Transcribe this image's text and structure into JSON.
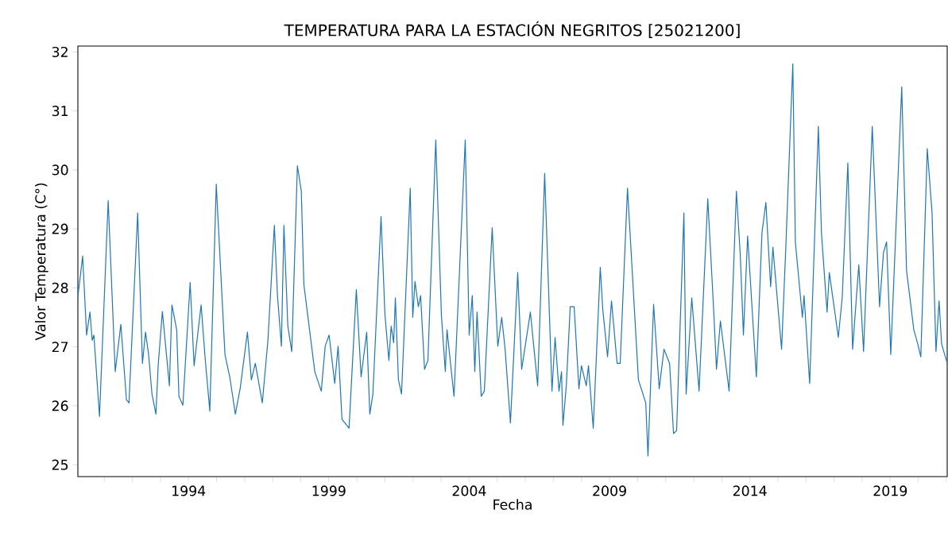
{
  "chart_data": {
    "type": "line",
    "title": "TEMPERATURA PARA LA ESTACIÓN NEGRITOS [25021200]",
    "xlabel": "Fecha",
    "ylabel": "Valor Temperatura (C°)",
    "x": [
      1990.06,
      1990.23,
      1990.37,
      1990.49,
      1990.57,
      1990.63,
      1990.83,
      1991.14,
      1991.39,
      1991.59,
      1991.79,
      1991.88,
      1992.19,
      1992.36,
      1992.47,
      1992.58,
      1992.7,
      1992.84,
      1992.92,
      1993.07,
      1993.32,
      1993.41,
      1993.58,
      1993.66,
      1993.8,
      1994.06,
      1994.2,
      1994.45,
      1994.59,
      1994.76,
      1994.99,
      1995.3,
      1995.47,
      1995.67,
      1995.84,
      1996.1,
      1996.24,
      1996.38,
      1996.63,
      1996.83,
      1997.06,
      1997.17,
      1997.31,
      1997.4,
      1997.54,
      1997.68,
      1997.88,
      1998.02,
      1998.11,
      1998.5,
      1998.73,
      1998.87,
      1999.01,
      1999.21,
      1999.33,
      1999.47,
      1999.72,
      1999.98,
      2000.15,
      2000.35,
      2000.46,
      2000.57,
      2000.86,
      2001.0,
      2001.14,
      2001.22,
      2001.31,
      2001.37,
      2001.48,
      2001.59,
      2001.9,
      2001.99,
      2002.07,
      2002.19,
      2002.27,
      2002.41,
      2002.53,
      2002.81,
      2003.01,
      2003.15,
      2003.21,
      2003.46,
      2003.86,
      2004.0,
      2004.11,
      2004.2,
      2004.28,
      2004.43,
      2004.54,
      2004.82,
      2005.02,
      2005.16,
      2005.28,
      2005.47,
      2005.73,
      2005.87,
      2006.18,
      2006.44,
      2006.69,
      2006.95,
      2007.06,
      2007.2,
      2007.29,
      2007.34,
      2007.46,
      2007.6,
      2007.74,
      2007.91,
      2008.0,
      2008.17,
      2008.25,
      2008.42,
      2008.67,
      2008.76,
      2008.93,
      2009.07,
      2009.27,
      2009.38,
      2009.64,
      2010.03,
      2010.29,
      2010.37,
      2010.57,
      2010.77,
      2010.94,
      2011.14,
      2011.28,
      2011.39,
      2011.65,
      2011.73,
      2011.93,
      2012.19,
      2012.5,
      2012.7,
      2012.81,
      2012.95,
      2013.26,
      2013.52,
      2013.66,
      2013.77,
      2013.92,
      2014.23,
      2014.43,
      2014.57,
      2014.74,
      2014.82,
      2015.13,
      2015.28,
      2015.53,
      2015.62,
      2015.87,
      2015.93,
      2016.13,
      2016.44,
      2016.55,
      2016.75,
      2016.83,
      2017.0,
      2017.15,
      2017.29,
      2017.49,
      2017.66,
      2017.88,
      2018.05,
      2018.36,
      2018.62,
      2018.76,
      2018.87,
      2019.02,
      2019.41,
      2019.58,
      2019.84,
      2019.98,
      2020.09,
      2020.32,
      2020.49,
      2020.63,
      2020.74,
      2020.83,
      2021.03
    ],
    "series": [
      {
        "color": "#1f77b4",
        "values": [
          27.85,
          28.54,
          27.2,
          27.59,
          27.11,
          27.2,
          25.82,
          29.48,
          26.58,
          27.38,
          26.1,
          26.05,
          29.27,
          26.72,
          27.25,
          26.87,
          26.2,
          25.86,
          26.68,
          27.6,
          26.34,
          27.71,
          27.29,
          26.16,
          26.01,
          28.09,
          26.68,
          27.71,
          26.83,
          25.91,
          29.76,
          26.87,
          26.49,
          25.86,
          26.29,
          27.25,
          26.44,
          26.72,
          26.05,
          27.11,
          29.06,
          27.87,
          27.01,
          29.06,
          27.35,
          26.92,
          30.07,
          29.64,
          28.06,
          26.58,
          26.25,
          27.01,
          27.2,
          26.38,
          27.01,
          25.77,
          25.62,
          27.97,
          26.49,
          27.25,
          25.86,
          26.2,
          29.21,
          27.54,
          26.77,
          27.35,
          27.07,
          27.83,
          26.44,
          26.2,
          29.69,
          27.5,
          28.11,
          27.68,
          27.87,
          26.62,
          26.77,
          30.51,
          27.54,
          26.58,
          27.29,
          26.16,
          30.51,
          27.2,
          27.87,
          26.58,
          27.59,
          26.16,
          26.25,
          29.02,
          27.01,
          27.5,
          26.96,
          25.71,
          28.26,
          26.62,
          27.59,
          26.34,
          29.94,
          26.25,
          27.16,
          26.25,
          26.58,
          25.67,
          26.34,
          27.68,
          27.68,
          26.29,
          26.68,
          26.34,
          26.68,
          25.62,
          28.35,
          27.63,
          26.83,
          27.78,
          26.72,
          26.72,
          29.69,
          26.44,
          26.05,
          25.15,
          27.72,
          26.29,
          26.96,
          26.72,
          25.53,
          25.58,
          29.27,
          26.2,
          27.83,
          26.25,
          29.51,
          27.72,
          26.62,
          27.44,
          26.25,
          29.64,
          28.54,
          27.2,
          28.88,
          26.49,
          28.93,
          29.45,
          28.02,
          28.69,
          26.96,
          28.69,
          31.8,
          28.78,
          27.5,
          27.87,
          26.38,
          30.74,
          28.93,
          27.59,
          28.26,
          27.68,
          27.16,
          27.83,
          30.12,
          26.96,
          28.39,
          26.92,
          30.74,
          27.68,
          28.6,
          28.78,
          26.87,
          31.41,
          28.3,
          27.29,
          27.05,
          26.83,
          30.36,
          29.27,
          26.92,
          27.78,
          27.05,
          26.72
        ]
      }
    ],
    "xlim": [
      1990.06,
      2021.03
    ],
    "ylim": [
      24.8,
      32.1
    ],
    "xticks": [
      {
        "value": 1991,
        "label": null
      },
      {
        "value": 1992,
        "label": null
      },
      {
        "value": 1993,
        "label": null
      },
      1994,
      {
        "value": 1995,
        "label": null
      },
      {
        "value": 1996,
        "label": null
      },
      {
        "value": 1997,
        "label": null
      },
      {
        "value": 1998,
        "label": null
      },
      1999,
      {
        "value": 2000,
        "label": null
      },
      {
        "value": 2001,
        "label": null
      },
      {
        "value": 2002,
        "label": null
      },
      {
        "value": 2003,
        "label": null
      },
      2004,
      {
        "value": 2005,
        "label": null
      },
      {
        "value": 2006,
        "label": null
      },
      {
        "value": 2007,
        "label": null
      },
      {
        "value": 2008,
        "label": null
      },
      2009,
      {
        "value": 2010,
        "label": null
      },
      {
        "value": 2011,
        "label": null
      },
      {
        "value": 2012,
        "label": null
      },
      {
        "value": 2013,
        "label": null
      },
      2014,
      {
        "value": 2015,
        "label": null
      },
      {
        "value": 2016,
        "label": null
      },
      {
        "value": 2017,
        "label": null
      },
      {
        "value": 2018,
        "label": null
      },
      2019,
      {
        "value": 2020,
        "label": null
      },
      {
        "value": 2021,
        "label": null
      }
    ],
    "yticks": [
      25,
      26,
      27,
      28,
      29,
      30,
      31,
      32
    ],
    "grid": false,
    "legend": false,
    "marker": "none",
    "line_style": "solid"
  }
}
